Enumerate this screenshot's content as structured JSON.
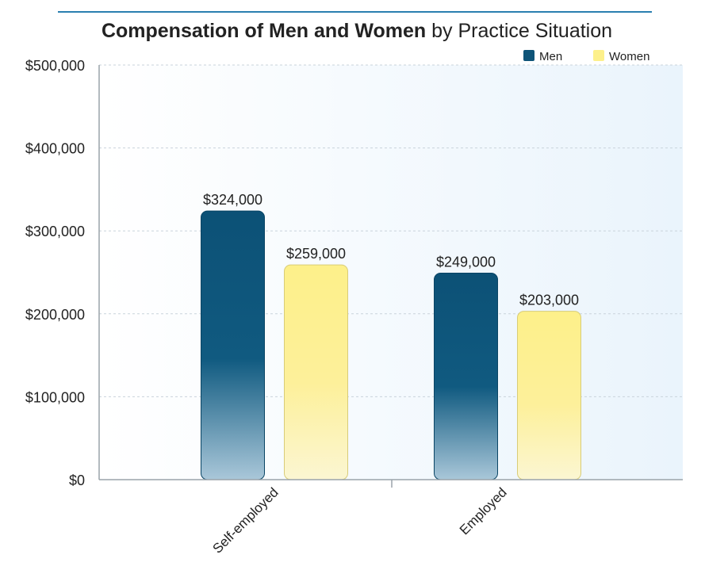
{
  "chart_data": {
    "type": "bar",
    "title_bold": "Compensation of Men and Women",
    "title_rest": " by Practice Situation",
    "categories": [
      "Self-employed",
      "Employed"
    ],
    "series": [
      {
        "name": "Men",
        "values": [
          324000,
          249000
        ],
        "labels": [
          "$324,000",
          "$249,000"
        ],
        "color": "#0e5478"
      },
      {
        "name": "Women",
        "values": [
          259000,
          203000
        ],
        "labels": [
          "$259,000",
          "$203,000"
        ],
        "color": "#fdf08a"
      }
    ],
    "yticks": [
      0,
      100000,
      200000,
      300000,
      400000,
      500000
    ],
    "ytick_labels": [
      "$0",
      "$100,000",
      "$200,000",
      "$300,000",
      "$400,000",
      "$500,000"
    ],
    "ylim": [
      0,
      500000
    ],
    "grid": true,
    "legend_position": "top-right",
    "colors": {
      "accent_rule": "#2a7fb0",
      "plot_bg": "#f0f7fd",
      "grid": "#c9d3db",
      "axis": "#888888"
    }
  }
}
